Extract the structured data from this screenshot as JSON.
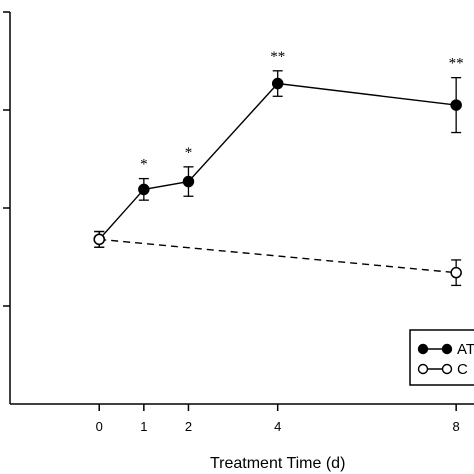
{
  "chart_data": {
    "type": "line",
    "title": "",
    "xlabel": "Treatment Time (d)",
    "ylabel": "",
    "x_ticks": [
      0,
      1,
      2,
      4,
      8
    ],
    "xlim": [
      -2,
      8.4
    ],
    "ylim": [
      0,
      4
    ],
    "y_ticks": [
      0,
      1,
      2,
      3,
      4
    ],
    "y_tick_labels_visible": false,
    "grid": false,
    "legend_position": "bottom-right",
    "series": [
      {
        "name": "AT",
        "marker": "filled-circle",
        "line": "solid",
        "color": "#000000",
        "x": [
          0,
          1,
          2,
          4,
          8
        ],
        "y": [
          1.68,
          2.19,
          2.27,
          3.27,
          3.05
        ],
        "err": [
          0.08,
          0.11,
          0.15,
          0.13,
          0.28
        ],
        "significance": [
          "",
          "*",
          "*",
          "**",
          "**"
        ]
      },
      {
        "name": "C",
        "marker": "open-circle",
        "line": "dashed",
        "color": "#000000",
        "x": [
          0,
          8
        ],
        "y": [
          1.68,
          1.34
        ],
        "err": [
          0.08,
          0.13
        ],
        "significance": [
          "",
          ""
        ]
      }
    ],
    "legend_labels": [
      "AT",
      "C"
    ]
  }
}
